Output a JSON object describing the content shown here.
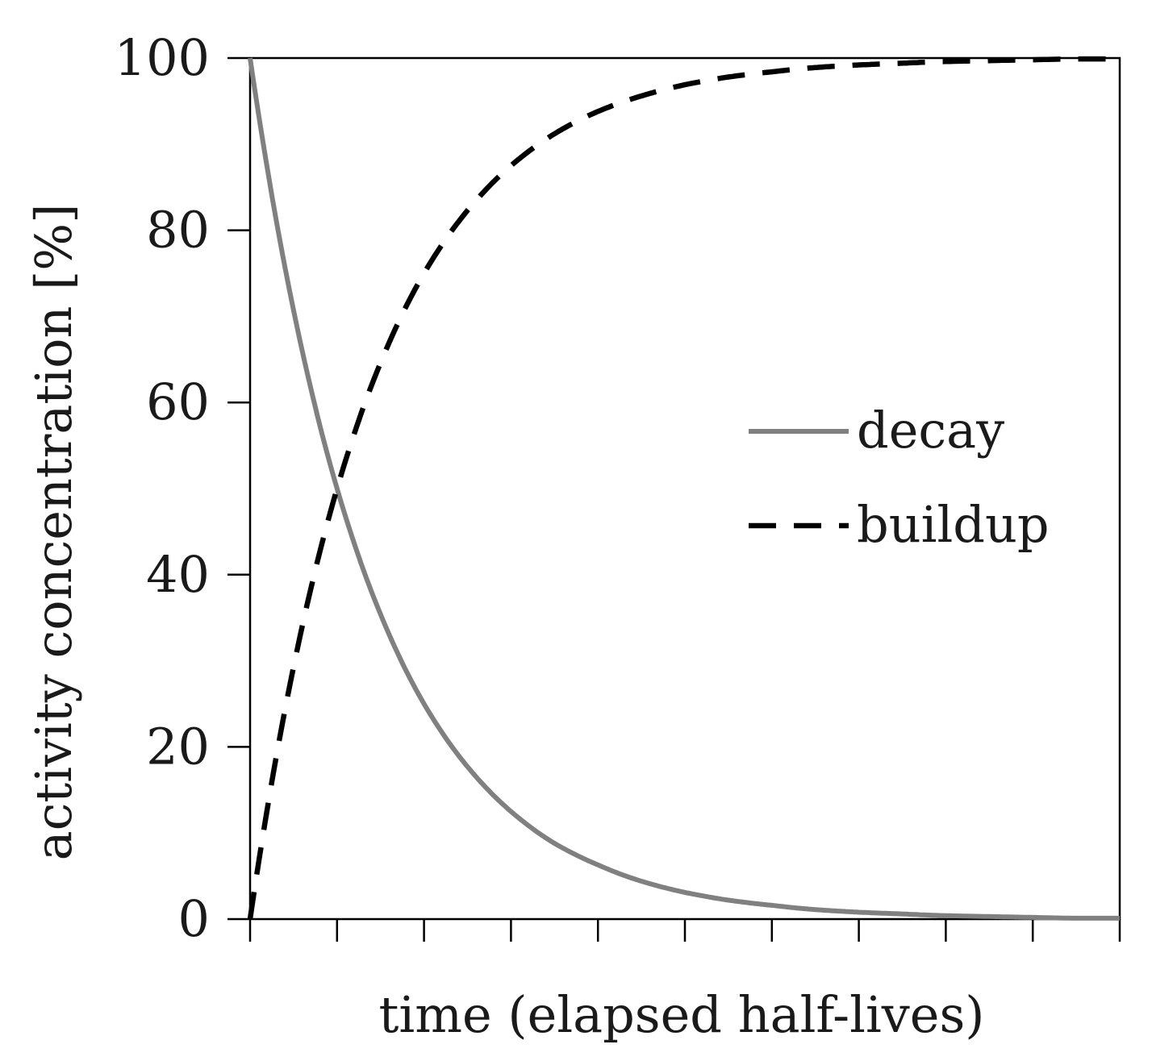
{
  "chart_data": {
    "type": "line",
    "title": "",
    "xlabel": "time (elapsed half-lives)",
    "ylabel": "activity concentration [%]",
    "xlim": [
      0,
      10
    ],
    "ylim": [
      0,
      100
    ],
    "x_ticks": [
      0,
      1,
      2,
      3,
      4,
      5,
      6,
      7,
      8,
      9,
      10
    ],
    "x_tick_labels_shown": false,
    "y_ticks": [
      0,
      20,
      40,
      60,
      80,
      100
    ],
    "grid": false,
    "legend_position": "center-right",
    "x": [
      0,
      0.5,
      1,
      1.5,
      2,
      2.5,
      3,
      3.5,
      4,
      4.5,
      5,
      5.5,
      6,
      6.5,
      7,
      7.5,
      8,
      8.5,
      9,
      9.5,
      10
    ],
    "series": [
      {
        "name": "decay",
        "color": "#808080",
        "style": "solid",
        "values": [
          100,
          70.7,
          50,
          35.4,
          25,
          17.7,
          12.5,
          8.8,
          6.3,
          4.4,
          3.1,
          2.2,
          1.6,
          1.1,
          0.8,
          0.6,
          0.4,
          0.3,
          0.2,
          0.1,
          0.1
        ]
      },
      {
        "name": "buildup",
        "color": "#000000",
        "style": "dashed",
        "values": [
          0,
          29.3,
          50,
          64.6,
          75,
          82.3,
          87.5,
          91.2,
          93.8,
          95.6,
          96.9,
          97.8,
          98.4,
          98.9,
          99.2,
          99.4,
          99.6,
          99.7,
          99.8,
          99.9,
          99.9
        ]
      }
    ]
  }
}
